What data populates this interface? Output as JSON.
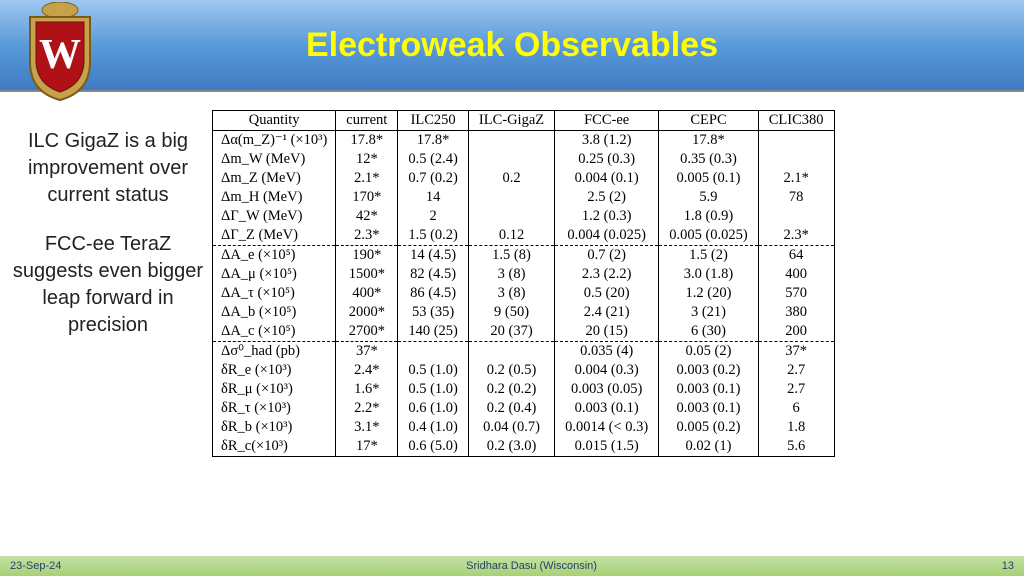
{
  "header": {
    "title": "Electroweak Observables"
  },
  "sidebar": {
    "p1": "ILC GigaZ is a big improvement over current status",
    "p2": "FCC-ee TeraZ suggests even bigger leap forward in precision"
  },
  "table": {
    "headers": [
      "Quantity",
      "current",
      "ILC250",
      "ILC-GigaZ",
      "FCC-ee",
      "CEPC",
      "CLIC380"
    ],
    "rows": [
      {
        "sep": false,
        "cells": [
          "Δα(m_Z)⁻¹ (×10³)",
          "17.8*",
          "17.8*",
          "",
          "3.8 (1.2)",
          "17.8*",
          ""
        ]
      },
      {
        "sep": false,
        "cells": [
          "Δm_W (MeV)",
          "12*",
          "0.5 (2.4)",
          "",
          "0.25 (0.3)",
          "0.35 (0.3)",
          ""
        ]
      },
      {
        "sep": false,
        "cells": [
          "Δm_Z (MeV)",
          "2.1*",
          "0.7 (0.2)",
          "0.2",
          "0.004 (0.1)",
          "0.005 (0.1)",
          "2.1*"
        ]
      },
      {
        "sep": false,
        "cells": [
          "Δm_H (MeV)",
          "170*",
          "14",
          "",
          "2.5 (2)",
          "5.9",
          "78"
        ]
      },
      {
        "sep": false,
        "cells": [
          "ΔΓ_W (MeV)",
          "42*",
          "2",
          "",
          "1.2 (0.3)",
          "1.8 (0.9)",
          ""
        ]
      },
      {
        "sep": false,
        "cells": [
          "ΔΓ_Z (MeV)",
          "2.3*",
          "1.5 (0.2)",
          "0.12",
          "0.004 (0.025)",
          "0.005 (0.025)",
          "2.3*"
        ]
      },
      {
        "sep": true,
        "cells": [
          "ΔA_e (×10⁵)",
          "190*",
          "14 (4.5)",
          "1.5 (8)",
          "0.7 (2)",
          "1.5 (2)",
          "64"
        ]
      },
      {
        "sep": false,
        "cells": [
          "ΔA_μ (×10⁵)",
          "1500*",
          "82 (4.5)",
          "3 (8)",
          "2.3 (2.2)",
          "3.0 (1.8)",
          "400"
        ]
      },
      {
        "sep": false,
        "cells": [
          "ΔA_τ (×10⁵)",
          "400*",
          "86 (4.5)",
          "3 (8)",
          "0.5 (20)",
          "1.2 (20)",
          "570"
        ]
      },
      {
        "sep": false,
        "cells": [
          "ΔA_b (×10⁵)",
          "2000*",
          "53 (35)",
          "9 (50)",
          "2.4 (21)",
          "3 (21)",
          "380"
        ]
      },
      {
        "sep": false,
        "cells": [
          "ΔA_c (×10⁵)",
          "2700*",
          "140 (25)",
          "20 (37)",
          "20 (15)",
          "6 (30)",
          "200"
        ]
      },
      {
        "sep": true,
        "cells": [
          "Δσ⁰_had (pb)",
          "37*",
          "",
          "",
          "0.035 (4)",
          "0.05 (2)",
          "37*"
        ]
      },
      {
        "sep": false,
        "cells": [
          "δR_e (×10³)",
          "2.4*",
          "0.5 (1.0)",
          "0.2 (0.5)",
          "0.004 (0.3)",
          "0.003 (0.2)",
          "2.7"
        ]
      },
      {
        "sep": false,
        "cells": [
          "δR_μ (×10³)",
          "1.6*",
          "0.5 (1.0)",
          "0.2 (0.2)",
          "0.003 (0.05)",
          "0.003 (0.1)",
          "2.7"
        ]
      },
      {
        "sep": false,
        "cells": [
          "δR_τ (×10³)",
          "2.2*",
          "0.6 (1.0)",
          "0.2 (0.4)",
          "0.003 (0.1)",
          "0.003 (0.1)",
          "6"
        ]
      },
      {
        "sep": false,
        "cells": [
          "δR_b (×10³)",
          "3.1*",
          "0.4 (1.0)",
          "0.04 (0.7)",
          "0.0014 (< 0.3)",
          "0.005 (0.2)",
          "1.8"
        ]
      },
      {
        "sep": false,
        "cells": [
          "δR_c(×10³)",
          "17*",
          "0.6 (5.0)",
          "0.2 (3.0)",
          "0.015 (1.5)",
          "0.02 (1)",
          "5.6"
        ]
      }
    ]
  },
  "footer": {
    "date": "23-Sep-24",
    "author": "Sridhara Dasu (Wisconsin)",
    "page": "13"
  },
  "colors": {
    "title_color": "#ffff00",
    "header_grad_top": "#9ec8f0",
    "header_grad_bot": "#3e7bc4",
    "footer_grad_top": "#c5e0a5",
    "footer_grad_bot": "#a8d175",
    "crest_red": "#b01116",
    "crest_gold": "#c6a24a"
  }
}
